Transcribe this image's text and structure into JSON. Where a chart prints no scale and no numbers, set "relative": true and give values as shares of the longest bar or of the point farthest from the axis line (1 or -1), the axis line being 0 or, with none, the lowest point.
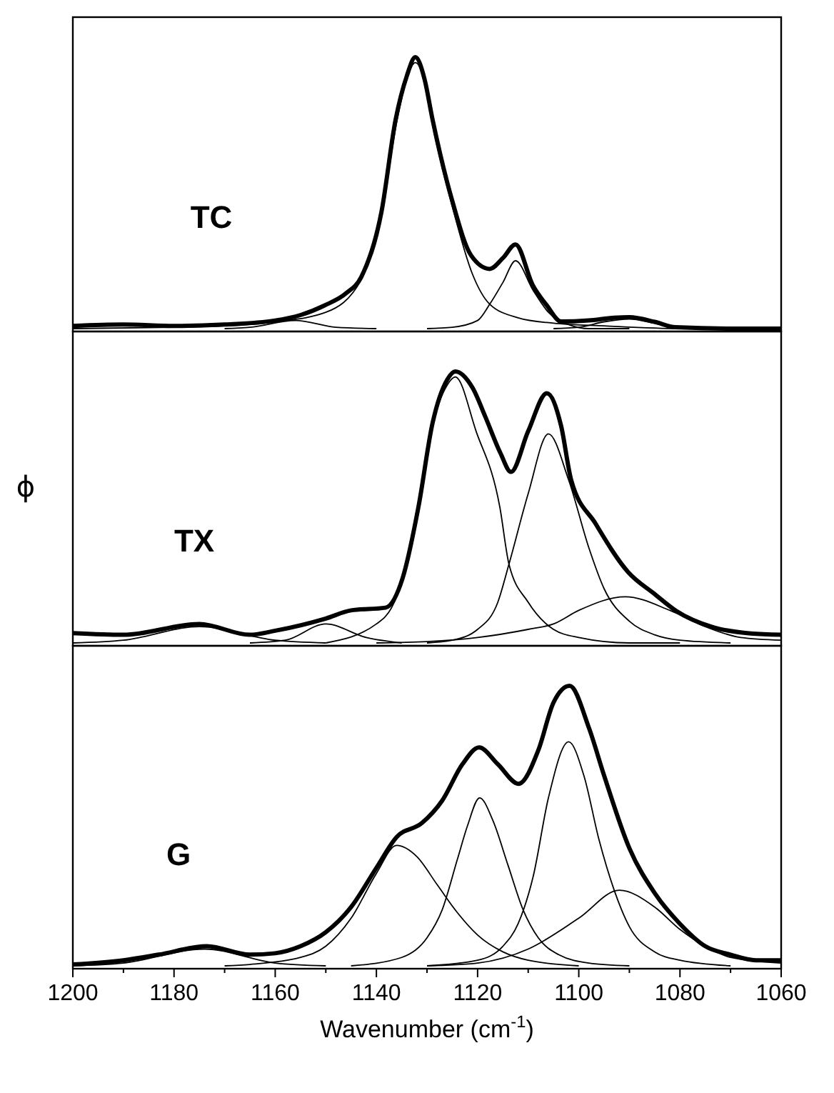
{
  "chart_data": [
    {
      "type": "line",
      "relative": true,
      "xlim": [
        1200,
        1060
      ],
      "xticks": [
        1200,
        1180,
        1160,
        1140,
        1120,
        1100,
        1080,
        1060
      ],
      "tick_labels": false,
      "annotations": [
        "TC"
      ],
      "series": [
        {
          "color": "#000000",
          "x": [
            1200,
            1190,
            1180,
            1170,
            1160,
            1155,
            1150.3,
            1146,
            1143,
            1139,
            1136.2,
            1134,
            1132.3,
            1130.5,
            1128.9,
            1125,
            1121.3,
            1117.6,
            1115,
            1112.5,
            1109.1,
            1106.3,
            1103.5,
            1098,
            1093,
            1090,
            1085,
            1080.9,
            1070,
            1060
          ],
          "values": [
            0.01,
            0.015,
            0.01,
            0.015,
            0.03,
            0.05,
            0.085,
            0.13,
            0.19,
            0.43,
            0.77,
            0.93,
            1,
            0.92,
            0.77,
            0.47,
            0.27,
            0.22,
            0.26,
            0.31,
            0.16,
            0.085,
            0.026,
            0.03,
            0.04,
            0.042,
            0.025,
            0.005,
            0,
            0
          ]
        },
        {
          "color": "#000000",
          "x": [
            1200,
            1180,
            1170,
            1160,
            1150,
            1143,
            1139,
            1136,
            1134,
            1132.3,
            1130.5,
            1129,
            1125,
            1121,
            1117.6,
            1112,
            1105,
            1095,
            1080,
            1060
          ],
          "values": [
            0,
            0.005,
            0.01,
            0.025,
            0.06,
            0.18,
            0.42,
            0.76,
            0.92,
            0.98,
            0.91,
            0.76,
            0.45,
            0.2,
            0.09,
            0.04,
            0.02,
            0.01,
            0,
            0
          ]
        },
        {
          "color": "#000000",
          "x": [
            1130,
            1125,
            1120,
            1117.6,
            1115,
            1112.5,
            1109,
            1106,
            1102,
            1098,
            1090
          ],
          "values": [
            0,
            0.005,
            0.03,
            0.09,
            0.17,
            0.25,
            0.14,
            0.06,
            0.015,
            0,
            0
          ]
        },
        {
          "color": "#000000",
          "x": [
            1105,
            1100,
            1095,
            1090,
            1085,
            1080,
            1075
          ],
          "values": [
            0,
            0.005,
            0.025,
            0.035,
            0.02,
            0.005,
            0
          ]
        },
        {
          "color": "#000000",
          "x": [
            1170,
            1165,
            1156,
            1148,
            1140
          ],
          "values": [
            0,
            0.005,
            0.03,
            0.005,
            0
          ]
        }
      ]
    },
    {
      "type": "line",
      "relative": true,
      "xlim": [
        1200,
        1060
      ],
      "xticks": [
        1200,
        1180,
        1160,
        1140,
        1120,
        1100,
        1080,
        1060
      ],
      "tick_labels": false,
      "ylabel": "ϕ",
      "annotations": [
        "TX"
      ],
      "series": [
        {
          "color": "#000000",
          "x": [
            1200,
            1190,
            1175,
            1165,
            1160,
            1150,
            1145,
            1138.2,
            1134.8,
            1131.7,
            1128.9,
            1126,
            1124.4,
            1121,
            1118.4,
            1115.5,
            1113.4,
            1110,
            1106.3,
            1103.5,
            1101.5,
            1096.7,
            1090.2,
            1085,
            1080.9,
            1073.3,
            1066,
            1060
          ],
          "values": [
            0.036,
            0.03,
            0.07,
            0.03,
            0.045,
            0.09,
            0.12,
            0.13,
            0.24,
            0.5,
            0.81,
            0.97,
            1,
            0.94,
            0.83,
            0.7,
            0.63,
            0.78,
            0.92,
            0.8,
            0.6,
            0.44,
            0.26,
            0.18,
            0.12,
            0.057,
            0.035,
            0.03
          ]
        },
        {
          "color": "#000000",
          "x": [
            1150,
            1140,
            1137,
            1135,
            1131.7,
            1128.9,
            1126,
            1124.4,
            1120.3,
            1115.6,
            1113.8,
            1110,
            1105,
            1100,
            1090,
            1080
          ],
          "values": [
            0,
            0.07,
            0.13,
            0.22,
            0.48,
            0.8,
            0.95,
            0.98,
            0.78,
            0.5,
            0.29,
            0.15,
            0.05,
            0.02,
            0,
            0
          ]
        },
        {
          "color": "#000000",
          "x": [
            1130,
            1125,
            1120,
            1116,
            1113.8,
            1110,
            1106,
            1102,
            1098,
            1095,
            1090,
            1085,
            1080,
            1070
          ],
          "values": [
            0,
            0.01,
            0.05,
            0.15,
            0.29,
            0.55,
            0.77,
            0.6,
            0.35,
            0.2,
            0.08,
            0.03,
            0.01,
            0
          ]
        },
        {
          "color": "#000000",
          "x": [
            1140,
            1130,
            1120,
            1110,
            1105,
            1100,
            1090.8,
            1082,
            1075,
            1068,
            1060
          ],
          "values": [
            0,
            0.005,
            0.02,
            0.05,
            0.07,
            0.12,
            0.17,
            0.12,
            0.06,
            0.02,
            0.01
          ]
        },
        {
          "color": "#000000",
          "x": [
            1165,
            1158,
            1150,
            1142,
            1135
          ],
          "values": [
            0,
            0.01,
            0.07,
            0.02,
            0
          ]
        },
        {
          "color": "#000000",
          "x": [
            1200,
            1190,
            1175,
            1160,
            1150
          ],
          "values": [
            0,
            0.01,
            0.06,
            0.01,
            0
          ]
        }
      ]
    },
    {
      "type": "line",
      "relative": true,
      "xlim": [
        1200,
        1060
      ],
      "xticks": [
        1200,
        1180,
        1160,
        1140,
        1120,
        1100,
        1080,
        1060
      ],
      "tick_labels": "x",
      "xlabel": "Wavenumber (cm$^{-1}$)",
      "annotations": [
        "G"
      ],
      "series": [
        {
          "color": "#000000",
          "x": [
            1200,
            1190,
            1183,
            1173.5,
            1165,
            1160,
            1155,
            1150,
            1145,
            1140,
            1136,
            1131,
            1127,
            1123,
            1119.7,
            1116,
            1111.9,
            1108,
            1105,
            1101.8,
            1098,
            1095,
            1090,
            1085,
            1080,
            1075,
            1070,
            1065,
            1060
          ],
          "values": [
            0.005,
            0.02,
            0.04,
            0.07,
            0.04,
            0.045,
            0.07,
            0.12,
            0.21,
            0.35,
            0.46,
            0.51,
            0.59,
            0.72,
            0.78,
            0.72,
            0.65,
            0.77,
            0.94,
            1,
            0.85,
            0.68,
            0.42,
            0.26,
            0.15,
            0.07,
            0.04,
            0.02,
            0.02
          ]
        },
        {
          "color": "#000000",
          "x": [
            1170,
            1165,
            1155,
            1150,
            1145,
            1140,
            1136,
            1132,
            1128,
            1124,
            1120,
            1115,
            1110,
            1100
          ],
          "values": [
            0,
            0.005,
            0.03,
            0.07,
            0.17,
            0.33,
            0.43,
            0.39,
            0.29,
            0.19,
            0.11,
            0.05,
            0.02,
            0
          ]
        },
        {
          "color": "#000000",
          "x": [
            1145,
            1135,
            1130,
            1127,
            1124,
            1122,
            1119.6,
            1117,
            1114,
            1111,
            1108,
            1104,
            1098,
            1090
          ],
          "values": [
            0,
            0.03,
            0.1,
            0.2,
            0.38,
            0.5,
            0.6,
            0.52,
            0.36,
            0.2,
            0.1,
            0.04,
            0.01,
            0
          ]
        },
        {
          "color": "#000000",
          "x": [
            1130,
            1120,
            1115,
            1112,
            1109,
            1106,
            1102,
            1099,
            1096,
            1093,
            1090,
            1085,
            1080,
            1070
          ],
          "values": [
            0,
            0.02,
            0.07,
            0.15,
            0.32,
            0.6,
            0.8,
            0.68,
            0.45,
            0.27,
            0.14,
            0.05,
            0.02,
            0
          ]
        },
        {
          "color": "#000000",
          "x": [
            1130,
            1120,
            1110,
            1100,
            1092,
            1085,
            1080,
            1075,
            1070,
            1060
          ],
          "values": [
            0,
            0.01,
            0.06,
            0.17,
            0.27,
            0.21,
            0.13,
            0.07,
            0.03,
            0.01
          ]
        },
        {
          "color": "#000000",
          "x": [
            1200,
            1190,
            1174,
            1160,
            1150
          ],
          "values": [
            0,
            0.01,
            0.06,
            0.01,
            0
          ]
        }
      ]
    }
  ]
}
